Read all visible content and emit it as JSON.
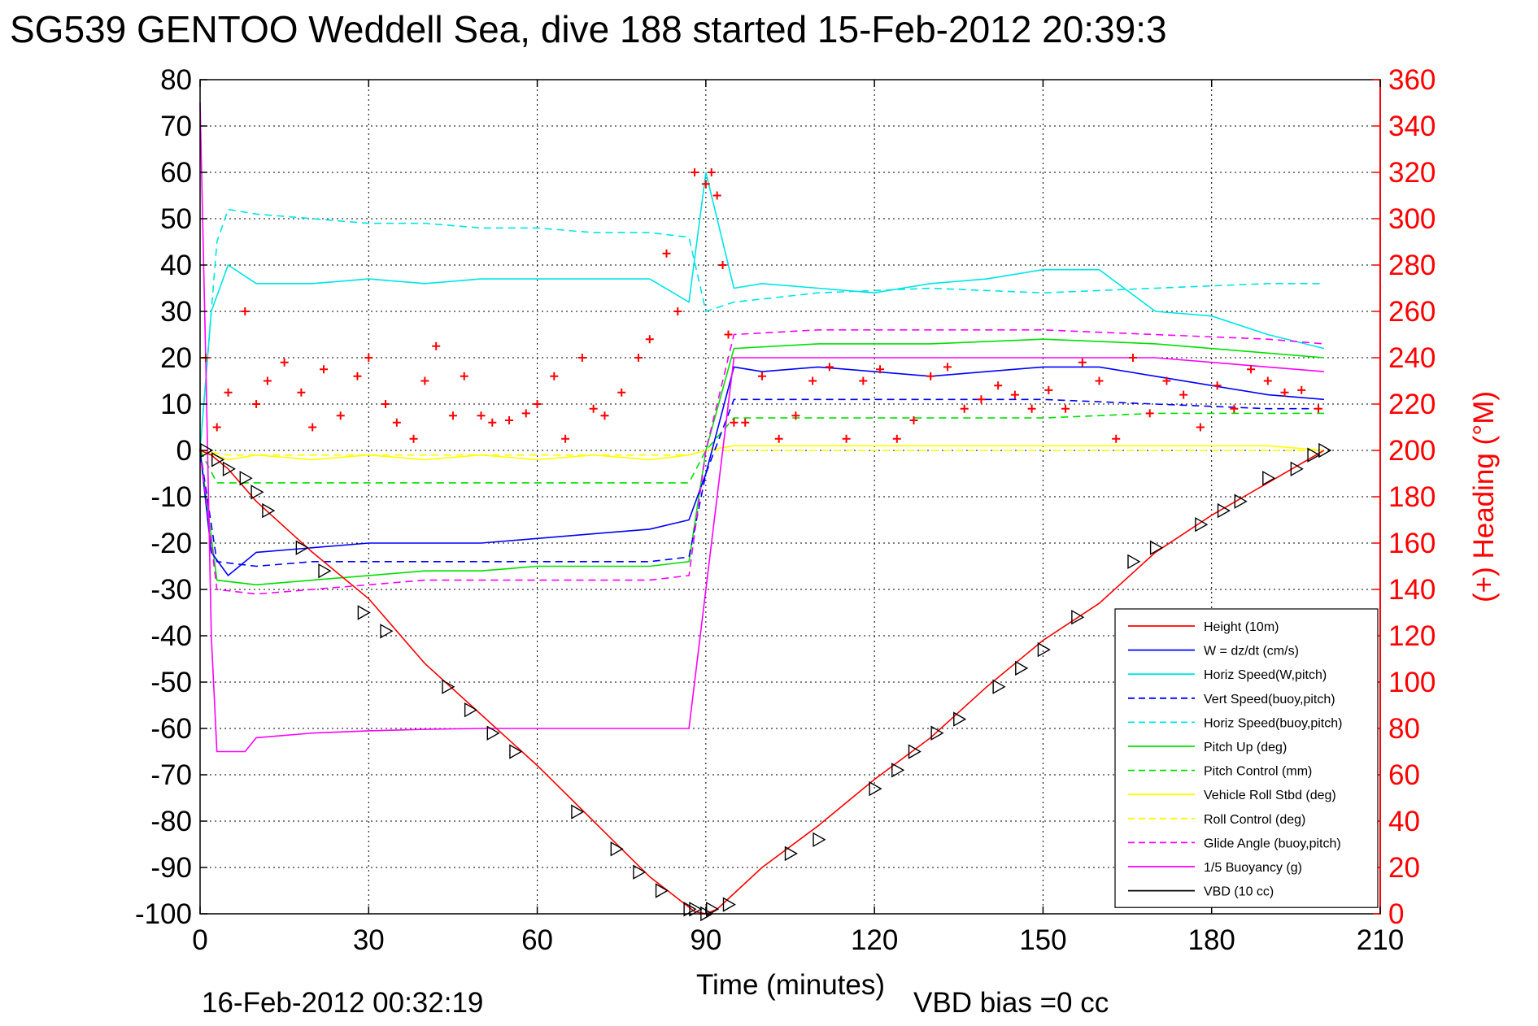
{
  "chart_data": {
    "type": "line",
    "title": "SG539 GENTOO Weddell Sea, dive 188 started 15-Feb-2012 20:39:3",
    "xlabel": "Time (minutes)",
    "ylabel_right": "(+) Heading (°M)",
    "xlim": [
      0,
      210
    ],
    "ylim": [
      -100,
      80
    ],
    "ylim_right": [
      0,
      360
    ],
    "xticks": [
      "0",
      "30",
      "60",
      "90",
      "120",
      "150",
      "180",
      "210"
    ],
    "yticks": [
      "80",
      "70",
      "60",
      "50",
      "40",
      "30",
      "20",
      "10",
      "0",
      "-10",
      "-20",
      "-30",
      "-40",
      "-50",
      "-60",
      "-70",
      "-80",
      "-90",
      "-100"
    ],
    "yticks_right": [
      "360",
      "340",
      "320",
      "300",
      "280",
      "260",
      "240",
      "220",
      "200",
      "180",
      "160",
      "140",
      "120",
      "100",
      "80",
      "60",
      "40",
      "20",
      "0"
    ],
    "grid": true,
    "legend_position": "bottom-right",
    "footer_left": "16-Feb-2012 00:32:19",
    "footer_right": "VBD bias =0 cc",
    "series": [
      {
        "name": "Height (10m)",
        "color": "#ff0000",
        "style": "solid",
        "marker": "none",
        "x": [
          0,
          2,
          5,
          10,
          20,
          30,
          40,
          50,
          60,
          70,
          80,
          88,
          90,
          92,
          100,
          110,
          120,
          130,
          140,
          150,
          160,
          170,
          180,
          190,
          200
        ],
        "y": [
          0,
          -1,
          -4,
          -11,
          -22,
          -32,
          -46,
          -57,
          -68,
          -80,
          -92,
          -99.5,
          -100,
          -99,
          -90,
          -81,
          -71,
          -62,
          -51,
          -41,
          -33,
          -22,
          -14,
          -7,
          0
        ]
      },
      {
        "name": "W = dz/dt (cm/s)",
        "color": "#0000ff",
        "style": "solid",
        "marker": "none",
        "x": [
          0,
          2,
          5,
          10,
          20,
          30,
          40,
          50,
          60,
          70,
          80,
          87,
          90,
          95,
          100,
          110,
          120,
          130,
          140,
          150,
          160,
          170,
          180,
          190,
          200
        ],
        "y": [
          0,
          -22,
          -27,
          -22,
          -21,
          -20,
          -20,
          -20,
          -19,
          -18,
          -17,
          -15,
          -5,
          18,
          17,
          18,
          17,
          16,
          17,
          18,
          18,
          16,
          14,
          12,
          11
        ]
      },
      {
        "name": "Horiz Speed(W,pitch)",
        "color": "#00e5e5",
        "style": "solid",
        "marker": "none",
        "x": [
          0,
          2,
          5,
          10,
          20,
          30,
          40,
          50,
          60,
          70,
          80,
          87,
          90,
          95,
          100,
          110,
          120,
          130,
          140,
          150,
          160,
          170,
          180,
          190,
          200
        ],
        "y": [
          0,
          30,
          40,
          36,
          36,
          37,
          36,
          37,
          37,
          37,
          37,
          32,
          60,
          35,
          36,
          35,
          34,
          36,
          37,
          39,
          39,
          30,
          29,
          25,
          22
        ]
      },
      {
        "name": "Vert Speed(buoy,pitch)",
        "color": "#0000ff",
        "style": "dashed",
        "marker": "none",
        "x": [
          0,
          3,
          10,
          20,
          30,
          40,
          50,
          60,
          70,
          80,
          87,
          90,
          95,
          110,
          130,
          150,
          170,
          190,
          200
        ],
        "y": [
          0,
          -24,
          -25,
          -24,
          -24,
          -24,
          -24,
          -24,
          -24,
          -24,
          -23,
          -5,
          11,
          11,
          11,
          11,
          10,
          9,
          9
        ]
      },
      {
        "name": "Horiz Speed(buoy,pitch)",
        "color": "#00e5e5",
        "style": "dashed",
        "marker": "none",
        "x": [
          0,
          3,
          5,
          10,
          20,
          30,
          40,
          50,
          60,
          70,
          80,
          87,
          90,
          95,
          110,
          130,
          150,
          170,
          190,
          200
        ],
        "y": [
          0,
          45,
          52,
          51,
          50,
          49,
          49,
          48,
          48,
          47,
          47,
          46,
          30,
          32,
          34,
          35,
          34,
          35,
          36,
          36
        ]
      },
      {
        "name": "Pitch Up (deg)",
        "color": "#00e000",
        "style": "solid",
        "marker": "none",
        "x": [
          0,
          3,
          10,
          20,
          30,
          40,
          50,
          60,
          70,
          80,
          87,
          90,
          95,
          110,
          130,
          150,
          170,
          190,
          200
        ],
        "y": [
          0,
          -28,
          -29,
          -28,
          -27,
          -26,
          -26,
          -25,
          -25,
          -25,
          -24,
          0,
          22,
          23,
          23,
          24,
          23,
          21,
          20
        ]
      },
      {
        "name": "Pitch Control (mm)",
        "color": "#00e000",
        "style": "dashed",
        "marker": "none",
        "x": [
          0,
          3,
          10,
          20,
          30,
          40,
          50,
          60,
          70,
          80,
          87,
          90,
          95,
          110,
          130,
          150,
          170,
          190,
          200
        ],
        "y": [
          0,
          -7,
          -7,
          -7,
          -7,
          -7,
          -7,
          -7,
          -7,
          -7,
          -7,
          0,
          7,
          7,
          7,
          7,
          8,
          8,
          8
        ]
      },
      {
        "name": "Vehicle Roll Stbd (deg)",
        "color": "#ffff00",
        "style": "solid",
        "marker": "none",
        "x": [
          0,
          5,
          10,
          20,
          30,
          40,
          50,
          60,
          70,
          80,
          87,
          90,
          95,
          110,
          130,
          150,
          170,
          190,
          200
        ],
        "y": [
          0,
          -2,
          -1,
          -2,
          -1,
          -2,
          -1,
          -2,
          -1,
          -2,
          -1,
          0,
          1,
          1,
          1,
          1,
          1,
          1,
          0
        ]
      },
      {
        "name": "Roll Control (deg)",
        "color": "#ffff00",
        "style": "dashed",
        "marker": "none",
        "x": [
          0,
          5,
          10,
          20,
          30,
          40,
          50,
          60,
          70,
          80,
          87,
          90,
          95,
          110,
          130,
          150,
          170,
          190,
          200
        ],
        "y": [
          0,
          -1,
          -1,
          -1,
          -1,
          -1,
          -1,
          -1,
          -1,
          -1,
          -1,
          0,
          0,
          0,
          0,
          0,
          0,
          0,
          0
        ]
      },
      {
        "name": "Glide Angle (buoy,pitch)",
        "color": "#ff00ff",
        "style": "dashed",
        "marker": "none",
        "x": [
          0,
          3,
          10,
          20,
          30,
          40,
          50,
          60,
          70,
          80,
          87,
          90,
          95,
          110,
          130,
          150,
          170,
          190,
          200
        ],
        "y": [
          0,
          -30,
          -31,
          -30,
          -29,
          -28,
          -28,
          -28,
          -28,
          -28,
          -27,
          0,
          25,
          26,
          26,
          26,
          25,
          24,
          23
        ]
      },
      {
        "name": "1/5 Buoyancy (g)",
        "color": "#ff00ff",
        "style": "solid",
        "marker": "none",
        "x": [
          0,
          1,
          2,
          3,
          8,
          10,
          20,
          30,
          40,
          50,
          60,
          70,
          80,
          87,
          90,
          93,
          95,
          110,
          130,
          150,
          170,
          190,
          200
        ],
        "y": [
          75,
          20,
          -40,
          -65,
          -65,
          -62,
          -61,
          -60.5,
          -60.2,
          -60,
          -60,
          -60,
          -60,
          -60,
          -30,
          0,
          20,
          20,
          20,
          20,
          20,
          18,
          17
        ]
      },
      {
        "name": "VBD (10 cc)",
        "color": "#000000",
        "style": "solid",
        "marker": "none",
        "x": [
          0,
          1,
          2,
          87,
          88,
          90,
          93,
          95,
          200
        ],
        "y": [
          40,
          0,
          -19,
          -19,
          -15,
          -5,
          10,
          20,
          20
        ]
      }
    ],
    "heading_series": {
      "name": "(+) Heading",
      "axis": "right",
      "color": "#ff0000",
      "marker": "+",
      "x": [
        1,
        3,
        5,
        8,
        10,
        12,
        15,
        18,
        20,
        22,
        25,
        28,
        30,
        33,
        35,
        38,
        40,
        42,
        45,
        47,
        50,
        52,
        55,
        58,
        60,
        63,
        65,
        68,
        70,
        72,
        75,
        78,
        80,
        83,
        85,
        88,
        90,
        91,
        92,
        93,
        94,
        95,
        97,
        100,
        103,
        106,
        109,
        112,
        115,
        118,
        121,
        124,
        127,
        130,
        133,
        136,
        139,
        142,
        145,
        148,
        151,
        154,
        157,
        160,
        163,
        166,
        169,
        172,
        175,
        178,
        181,
        184,
        187,
        190,
        193,
        196,
        199
      ],
      "y": [
        240,
        210,
        225,
        260,
        220,
        230,
        238,
        225,
        210,
        235,
        215,
        232,
        240,
        220,
        212,
        205,
        230,
        245,
        215,
        232,
        215,
        212,
        213,
        216,
        220,
        232,
        205,
        240,
        218,
        215,
        225,
        240,
        248,
        285,
        260,
        320,
        315,
        320,
        310,
        280,
        250,
        212,
        212,
        232,
        205,
        215,
        230,
        236,
        205,
        230,
        235,
        205,
        213,
        232,
        236,
        218,
        222,
        228,
        224,
        218,
        226,
        218,
        238,
        230,
        205,
        240,
        216,
        230,
        224,
        210,
        228,
        218,
        235,
        230,
        225,
        226,
        218
      ]
    },
    "markers_series": {
      "marker": "triangles",
      "color": "#000000",
      "x": [
        1,
        3,
        5,
        8,
        10,
        12,
        18,
        22,
        29,
        33,
        44,
        48,
        52,
        56,
        67,
        74,
        78,
        82,
        87,
        88,
        90,
        91,
        94,
        105,
        110,
        120,
        124,
        127,
        131,
        135,
        142,
        146,
        150,
        156,
        166,
        170,
        178,
        182,
        185,
        190,
        195,
        198,
        200
      ],
      "y": [
        0,
        -2,
        -4,
        -6,
        -9,
        -13,
        -21,
        -26,
        -35,
        -39,
        -51,
        -56,
        -61,
        -65,
        -78,
        -86,
        -91,
        -95,
        -99,
        -99,
        -100,
        -99,
        -98,
        -87,
        -84,
        -73,
        -69,
        -65,
        -61,
        -58,
        -51,
        -47,
        -43,
        -36,
        -24,
        -21,
        -16,
        -13,
        -11,
        -6,
        -4,
        -1,
        0
      ]
    }
  }
}
